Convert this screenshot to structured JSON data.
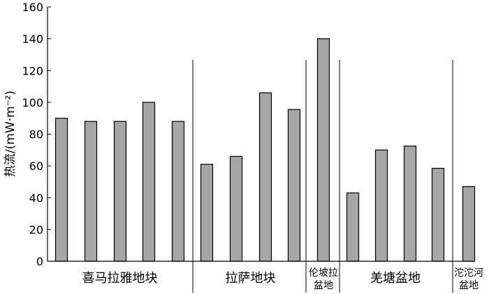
{
  "chart_data": {
    "type": "bar",
    "title": "",
    "xlabel": "",
    "ylabel": "热流/(mW·m⁻²)",
    "ylim": [
      0,
      160
    ],
    "yticks": [
      0,
      20,
      40,
      60,
      80,
      100,
      120,
      140,
      160
    ],
    "grid": false,
    "legend": "none",
    "values": [
      90,
      88,
      88,
      100,
      88,
      61,
      66,
      106,
      95.5,
      140,
      43,
      70,
      72.5,
      58.5,
      47
    ],
    "groups": [
      {
        "lines": [
          "喜马拉雅地块"
        ],
        "start": 0,
        "end": 4
      },
      {
        "lines": [
          "拉萨地块"
        ],
        "start": 5,
        "end": 8
      },
      {
        "lines": [
          "伦坡拉",
          "盆地"
        ],
        "start": 9,
        "end": 9
      },
      {
        "lines": [
          "羌塘盆地"
        ],
        "start": 10,
        "end": 13
      },
      {
        "lines": [
          "沱沱河",
          "盆地"
        ],
        "start": 14,
        "end": 14
      }
    ],
    "colors": {
      "bar_fill": "#a6a6a6",
      "bar_stroke": "#000000",
      "axis": "#000000"
    }
  }
}
